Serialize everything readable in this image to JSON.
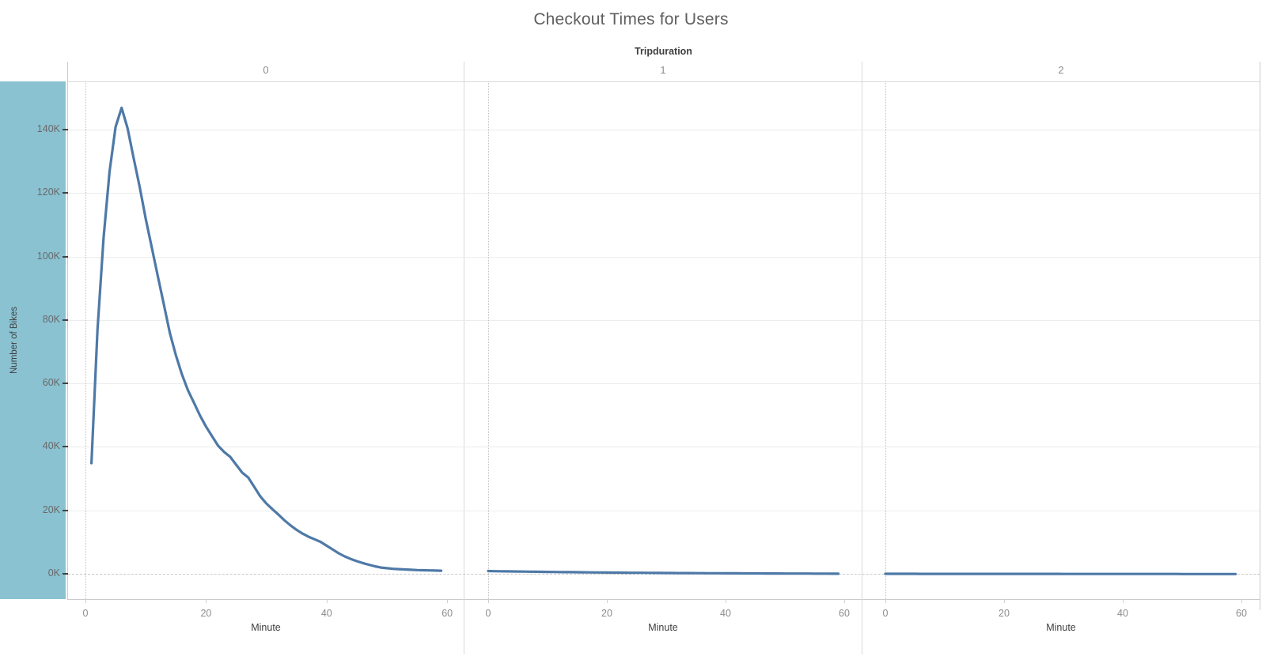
{
  "title": "Checkout Times for Users",
  "facet_header": {
    "label": "Tripduration",
    "columns": [
      "0",
      "1",
      "2"
    ]
  },
  "y_axis": {
    "label": "Number of Bikes",
    "ticks": [
      "0K",
      "20K",
      "40K",
      "60K",
      "80K",
      "100K",
      "120K",
      "140K"
    ],
    "band_color": "#8ac2d2"
  },
  "x_axis": {
    "label": "Minute",
    "ticks": [
      "0",
      "20",
      "40",
      "60"
    ]
  },
  "chart_data": {
    "type": "line",
    "title": "Checkout Times for Users",
    "facet_by": "Tripduration",
    "facet_values": [
      "0",
      "1",
      "2"
    ],
    "xlabel": "Minute",
    "ylabel": "Number of Bikes",
    "x_range": [
      0,
      60
    ],
    "x_tick_values": [
      0,
      20,
      40,
      60
    ],
    "y_range_thousands": [
      0,
      155
    ],
    "y_tick_values_k": [
      0,
      20,
      40,
      60,
      80,
      100,
      120,
      140
    ],
    "grid": "horizontal-only",
    "line_color": "#4e79a7",
    "series": [
      {
        "name": "Tripduration 0",
        "minutes": [
          1,
          2,
          3,
          4,
          5,
          6,
          7,
          8,
          9,
          10,
          11,
          12,
          13,
          14,
          15,
          16,
          17,
          18,
          19,
          20,
          21,
          22,
          23,
          24,
          25,
          26,
          27,
          28,
          29,
          30,
          31,
          32,
          33,
          34,
          35,
          36,
          37,
          38,
          39,
          40,
          41,
          42,
          43,
          44,
          45,
          46,
          47,
          48,
          49,
          50,
          51,
          52,
          53,
          54,
          55,
          56,
          57,
          58,
          59
        ],
        "bikes_k": [
          35,
          77,
          106,
          127,
          141,
          147,
          140.5,
          131,
          122,
          112,
          103,
          94,
          85,
          76,
          69,
          63,
          58,
          54,
          50,
          46.5,
          43.5,
          40.5,
          38.5,
          37,
          34.5,
          32,
          30.5,
          27.5,
          24.5,
          22.3,
          20.5,
          18.8,
          17,
          15.4,
          14,
          12.8,
          11.8,
          11,
          10.2,
          9,
          7.8,
          6.6,
          5.6,
          4.8,
          4.1,
          3.5,
          3,
          2.5,
          2.1,
          1.9,
          1.7,
          1.6,
          1.5,
          1.4,
          1.3,
          1.25,
          1.2,
          1.15,
          1.1
        ]
      },
      {
        "name": "Tripduration 1",
        "minutes": [
          0,
          1,
          2,
          3,
          4,
          5,
          6,
          7,
          8,
          9,
          10,
          11,
          12,
          13,
          14,
          15,
          16,
          17,
          18,
          19,
          20,
          21,
          22,
          23,
          24,
          25,
          26,
          27,
          28,
          29,
          30,
          31,
          32,
          33,
          34,
          35,
          36,
          37,
          38,
          39,
          40,
          41,
          42,
          43,
          44,
          45,
          46,
          47,
          48,
          49,
          50,
          51,
          52,
          53,
          54,
          55,
          56,
          57,
          58,
          59
        ],
        "bikes_k": [
          1.0,
          0.95,
          0.92,
          0.9,
          0.88,
          0.85,
          0.82,
          0.8,
          0.78,
          0.75,
          0.72,
          0.7,
          0.68,
          0.66,
          0.64,
          0.62,
          0.6,
          0.58,
          0.56,
          0.55,
          0.53,
          0.51,
          0.5,
          0.48,
          0.46,
          0.45,
          0.44,
          0.42,
          0.41,
          0.4,
          0.38,
          0.37,
          0.36,
          0.35,
          0.34,
          0.33,
          0.32,
          0.31,
          0.3,
          0.29,
          0.28,
          0.27,
          0.27,
          0.26,
          0.25,
          0.25,
          0.24,
          0.23,
          0.23,
          0.22,
          0.21,
          0.21,
          0.2,
          0.2,
          0.19,
          0.18,
          0.18,
          0.17,
          0.16,
          0.15
        ]
      },
      {
        "name": "Tripduration 2",
        "minutes": [
          0,
          1,
          2,
          3,
          4,
          5,
          6,
          7,
          8,
          9,
          10,
          11,
          12,
          13,
          14,
          15,
          16,
          17,
          18,
          19,
          20,
          21,
          22,
          23,
          24,
          25,
          26,
          27,
          28,
          29,
          30,
          31,
          32,
          33,
          34,
          35,
          36,
          37,
          38,
          39,
          40,
          41,
          42,
          43,
          44,
          45,
          46,
          47,
          48,
          49,
          50,
          51,
          52,
          53,
          54,
          55,
          56,
          57,
          58,
          59
        ],
        "bikes_k": [
          0.12,
          0.12,
          0.12,
          0.12,
          0.12,
          0.12,
          0.11,
          0.11,
          0.11,
          0.11,
          0.11,
          0.11,
          0.1,
          0.1,
          0.1,
          0.1,
          0.1,
          0.1,
          0.1,
          0.1,
          0.1,
          0.1,
          0.09,
          0.09,
          0.09,
          0.09,
          0.09,
          0.09,
          0.09,
          0.09,
          0.08,
          0.08,
          0.08,
          0.08,
          0.08,
          0.08,
          0.08,
          0.08,
          0.08,
          0.08,
          0.07,
          0.07,
          0.07,
          0.07,
          0.07,
          0.07,
          0.07,
          0.07,
          0.07,
          0.07,
          0.06,
          0.06,
          0.06,
          0.06,
          0.06,
          0.06,
          0.06,
          0.06,
          0.05,
          0.05
        ]
      }
    ]
  }
}
